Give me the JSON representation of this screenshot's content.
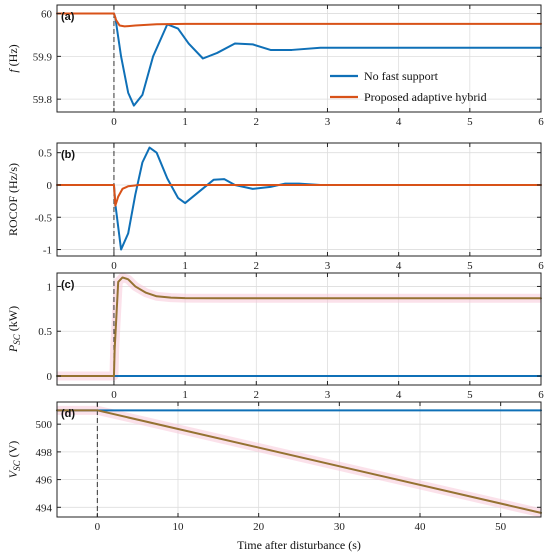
{
  "colors": {
    "series_blue": "#0f70b7",
    "series_red": "#d85218",
    "series_olive": "#957232",
    "pink_overlay": "#f7c8d8",
    "grid": "#dddddd",
    "axis": "#222222"
  },
  "chart_data": [
    {
      "type": "line",
      "panel_label": "(a)",
      "ylabel": "f (Hz)",
      "xlabel": "",
      "xlim": [
        -0.8,
        6
      ],
      "ylim": [
        59.77,
        60.02
      ],
      "xticks": [
        0,
        1,
        2,
        3,
        4,
        5,
        6
      ],
      "xtick_labels": [
        "0",
        "1",
        "2",
        "3",
        "4",
        "5",
        "6"
      ],
      "yticks": [
        59.8,
        59.9,
        60.0
      ],
      "ytick_labels": [
        "59.8",
        "59.9",
        "60"
      ],
      "grid": true,
      "legend_position": "center-right",
      "legend": [
        "No fast support",
        "Proposed adaptive hybrid"
      ],
      "series": [
        {
          "name": "No fast support",
          "color": "#0f70b7",
          "x": [
            -0.8,
            0,
            0.02,
            0.1,
            0.2,
            0.28,
            0.4,
            0.55,
            0.75,
            0.9,
            1.05,
            1.25,
            1.45,
            1.7,
            1.95,
            2.2,
            2.5,
            2.9,
            3.5,
            4.5,
            6
          ],
          "y": [
            60.0,
            60.0,
            59.99,
            59.9,
            59.815,
            59.785,
            59.81,
            59.9,
            59.975,
            59.965,
            59.93,
            59.895,
            59.908,
            59.93,
            59.928,
            59.915,
            59.915,
            59.92,
            59.92,
            59.92,
            59.92
          ]
        },
        {
          "name": "Proposed adaptive hybrid",
          "color": "#d85218",
          "x": [
            -0.8,
            0,
            0.03,
            0.08,
            0.15,
            0.3,
            0.6,
            1,
            2,
            4,
            6
          ],
          "y": [
            60.0,
            60.0,
            59.985,
            59.972,
            59.97,
            59.972,
            59.975,
            59.976,
            59.976,
            59.976,
            59.976
          ]
        }
      ]
    },
    {
      "type": "line",
      "panel_label": "(b)",
      "ylabel": "ROCOF (Hz/s)",
      "xlabel": "",
      "xlim": [
        -0.8,
        6
      ],
      "ylim": [
        -1.1,
        0.65
      ],
      "xticks": [
        0,
        1,
        2,
        3,
        4,
        5,
        6
      ],
      "xtick_labels": [
        "0",
        "1",
        "2",
        "3",
        "4",
        "5",
        "6"
      ],
      "yticks": [
        -1,
        -0.5,
        0,
        0.5
      ],
      "ytick_labels": [
        "-1",
        "-0.5",
        "0",
        "0.5"
      ],
      "grid": true,
      "series": [
        {
          "name": "No fast support",
          "color": "#0f70b7",
          "x": [
            -0.8,
            0,
            0.02,
            0.1,
            0.2,
            0.3,
            0.4,
            0.5,
            0.6,
            0.75,
            0.9,
            1.0,
            1.2,
            1.4,
            1.55,
            1.7,
            1.95,
            2.2,
            2.4,
            2.6,
            2.9,
            3.3,
            4,
            6
          ],
          "y": [
            0,
            0,
            -0.3,
            -1.0,
            -0.75,
            -0.15,
            0.35,
            0.58,
            0.5,
            0.1,
            -0.2,
            -0.28,
            -0.1,
            0.08,
            0.09,
            0.0,
            -0.06,
            -0.03,
            0.02,
            0.02,
            0.0,
            0.0,
            0.0,
            0.0
          ]
        },
        {
          "name": "Proposed adaptive hybrid",
          "color": "#d85218",
          "x": [
            -0.8,
            0,
            0.02,
            0.06,
            0.12,
            0.2,
            0.35,
            0.6,
            1,
            6
          ],
          "y": [
            0,
            0,
            -0.32,
            -0.18,
            -0.06,
            -0.02,
            0.0,
            0.0,
            0.0,
            0.0
          ]
        }
      ]
    },
    {
      "type": "line",
      "panel_label": "(c)",
      "ylabel": "P_SC (kW)",
      "xlabel": "",
      "xlim": [
        -0.8,
        6
      ],
      "ylim": [
        -0.1,
        1.15
      ],
      "xticks": [
        0,
        1,
        2,
        3,
        4,
        5,
        6
      ],
      "xtick_labels": [
        "0",
        "1",
        "2",
        "3",
        "4",
        "5",
        "6"
      ],
      "yticks": [
        0,
        0.5,
        1
      ],
      "ytick_labels": [
        "0",
        "0.5",
        "1"
      ],
      "grid": true,
      "series": [
        {
          "name": "No fast support",
          "color": "#0f70b7",
          "x": [
            -0.8,
            6
          ],
          "y": [
            0,
            0
          ]
        },
        {
          "name": "Proposed adaptive hybrid",
          "color": "#957232",
          "x": [
            -0.8,
            0,
            0.01,
            0.06,
            0.12,
            0.2,
            0.3,
            0.45,
            0.6,
            0.8,
            1.0,
            1.5,
            2,
            6
          ],
          "y": [
            0,
            0,
            0.3,
            1.05,
            1.1,
            1.08,
            1.0,
            0.93,
            0.89,
            0.875,
            0.87,
            0.868,
            0.868,
            0.868
          ]
        }
      ]
    },
    {
      "type": "line",
      "panel_label": "(d)",
      "ylabel": "V_SC (V)",
      "xlabel": "Time after disturbance (s)",
      "xlim": [
        -5,
        55
      ],
      "ylim": [
        493.3,
        501.6
      ],
      "xticks": [
        0,
        10,
        20,
        30,
        40,
        50
      ],
      "xtick_labels": [
        "0",
        "10",
        "20",
        "30",
        "40",
        "50"
      ],
      "yticks": [
        494,
        496,
        498,
        500
      ],
      "ytick_labels": [
        "494",
        "496",
        "498",
        "500"
      ],
      "grid": true,
      "series": [
        {
          "name": "No fast support",
          "color": "#0f70b7",
          "x": [
            -5,
            55
          ],
          "y": [
            501.0,
            501.0
          ]
        },
        {
          "name": "Proposed adaptive hybrid",
          "color": "#957232",
          "x": [
            -5,
            0,
            55
          ],
          "y": [
            501.0,
            501.0,
            493.6
          ]
        }
      ]
    }
  ]
}
